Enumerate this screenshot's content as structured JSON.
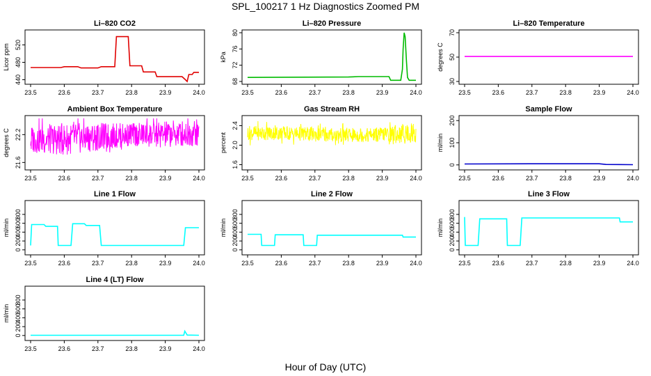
{
  "title": "SPL_100217  1 Hz Diagnostics Zoomed PM",
  "xlabel": "Hour of Day (UTC)",
  "chart_data": [
    {
      "type": "line",
      "title": "Li–820 CO2",
      "ylabel": "Licor ppm",
      "color": "#e00000",
      "xlim": [
        23.5,
        24.0
      ],
      "xticks": [
        "23.5",
        "23.6",
        "23.7",
        "23.8",
        "23.9",
        "24.0"
      ],
      "ylim": [
        436,
        548
      ],
      "yticks": [
        "440",
        "480",
        "520"
      ],
      "series": [
        {
          "x": [
            23.5,
            23.59,
            23.6,
            23.64,
            23.65,
            23.7,
            23.71,
            23.75,
            23.755,
            23.79,
            23.795,
            23.83,
            23.835,
            23.87,
            23.875,
            23.95,
            23.96,
            23.965,
            23.97,
            23.98,
            23.985,
            24.0
          ],
          "y": [
            468,
            468,
            470,
            470,
            467,
            467,
            470,
            470,
            539,
            539,
            472,
            472,
            458,
            458,
            447,
            447,
            440,
            436,
            452,
            452,
            457,
            457
          ]
        }
      ]
    },
    {
      "type": "line",
      "title": "Li–820 Pressure",
      "ylabel": "kPa",
      "color": "#00bb00",
      "xlim": [
        23.5,
        24.0
      ],
      "xticks": [
        "23.5",
        "23.6",
        "23.7",
        "23.8",
        "23.9",
        "24.0"
      ],
      "ylim": [
        68,
        80
      ],
      "yticks": [
        "68",
        "72",
        "76",
        "80"
      ],
      "series": [
        {
          "x": [
            23.5,
            23.8,
            23.83,
            23.92,
            23.925,
            23.955,
            23.96,
            23.962,
            23.965,
            23.968,
            23.972,
            23.975,
            23.98,
            24.0
          ],
          "y": [
            69,
            69.1,
            69.2,
            69.2,
            68.3,
            68.3,
            71,
            76,
            80,
            79,
            73,
            69,
            68.3,
            68.3
          ]
        }
      ]
    },
    {
      "type": "line",
      "title": "Li–820 Temperature",
      "ylabel": "degrees C",
      "color": "#ff00ff",
      "xlim": [
        23.5,
        24.0
      ],
      "xticks": [
        "23.5",
        "23.6",
        "23.7",
        "23.8",
        "23.9",
        "24.0"
      ],
      "ylim": [
        30,
        70
      ],
      "yticks": [
        "30",
        "50",
        "70"
      ],
      "series": [
        {
          "x": [
            23.5,
            24.0
          ],
          "y": [
            50.5,
            50.5
          ]
        }
      ]
    },
    {
      "type": "line",
      "title": "Ambient Box Temperature",
      "ylabel": "degrees C",
      "color": "#ff00ff",
      "xlim": [
        23.5,
        24.0
      ],
      "xticks": [
        "23.5",
        "23.6",
        "23.7",
        "23.8",
        "23.9",
        "24.0"
      ],
      "ylim": [
        21.5,
        22.55
      ],
      "yticks": [
        "21.6",
        "22.2"
      ],
      "series": [
        {
          "x": [
            23.5,
            23.6,
            23.7,
            23.8,
            23.9,
            24.0
          ],
          "y": [
            22.1,
            22.1,
            22.15,
            22.2,
            22.2,
            22.25
          ],
          "band": [
            0.3,
            0.35,
            0.3,
            0.25,
            0.3,
            0.3
          ]
        }
      ]
    },
    {
      "type": "line",
      "title": "Gas Stream RH",
      "ylabel": "percent",
      "color": "#ffff00",
      "xlim": [
        23.5,
        24.0
      ],
      "xticks": [
        "23.5",
        "23.6",
        "23.7",
        "23.8",
        "23.9",
        "24.0"
      ],
      "ylim": [
        1.55,
        2.55
      ],
      "yticks": [
        "1.6",
        "2.0",
        "2.4"
      ],
      "series": [
        {
          "x": [
            23.5,
            23.6,
            23.7,
            23.8,
            23.9,
            24.0
          ],
          "y": [
            2.25,
            2.25,
            2.22,
            2.2,
            2.22,
            2.25
          ],
          "band": [
            0.15,
            0.15,
            0.15,
            0.15,
            0.15,
            0.25
          ]
        }
      ]
    },
    {
      "type": "line",
      "title": "Sample Flow",
      "ylabel": "ml/min",
      "color": "#0000cc",
      "xlim": [
        23.5,
        24.0
      ],
      "xticks": [
        "23.5",
        "23.6",
        "23.7",
        "23.8",
        "23.9",
        "24.0"
      ],
      "ylim": [
        -10,
        210
      ],
      "yticks": [
        "0",
        "100",
        "200"
      ],
      "series": [
        {
          "x": [
            23.5,
            23.7,
            23.9,
            23.92,
            24.0
          ],
          "y": [
            4,
            5,
            5,
            2,
            1
          ]
        }
      ]
    },
    {
      "type": "line",
      "title": "Line 1 Flow",
      "ylabel": "ml/min",
      "color": "#00ffff",
      "xlim": [
        23.5,
        24.0
      ],
      "xticks": [
        "23.5",
        "23.6",
        "23.7",
        "23.8",
        "23.9",
        "24.0"
      ],
      "ylim": [
        -50,
        1050
      ],
      "yticks": [
        "0",
        "200",
        "400",
        "600",
        "800"
      ],
      "series": [
        {
          "x": [
            23.5,
            23.503,
            23.54,
            23.545,
            23.58,
            23.582,
            23.62,
            23.625,
            23.66,
            23.665,
            23.705,
            23.71,
            23.955,
            23.96,
            24.0
          ],
          "y": [
            100,
            570,
            570,
            530,
            530,
            100,
            100,
            590,
            590,
            550,
            550,
            100,
            100,
            500,
            500
          ]
        }
      ]
    },
    {
      "type": "line",
      "title": "Line 2 Flow",
      "ylabel": "ml/min",
      "color": "#00ffff",
      "xlim": [
        23.5,
        24.0
      ],
      "xticks": [
        "23.5",
        "23.6",
        "23.7",
        "23.8",
        "23.9",
        "24.0"
      ],
      "ylim": [
        -50,
        1050
      ],
      "yticks": [
        "0",
        "200",
        "400",
        "600",
        "800"
      ],
      "series": [
        {
          "x": [
            23.5,
            23.54,
            23.542,
            23.58,
            23.582,
            23.665,
            23.667,
            23.705,
            23.707,
            23.96,
            23.962,
            24.0
          ],
          "y": [
            350,
            350,
            100,
            100,
            340,
            340,
            100,
            100,
            330,
            330,
            290,
            290
          ]
        }
      ]
    },
    {
      "type": "line",
      "title": "Line 3 Flow",
      "ylabel": "ml/min",
      "color": "#00ffff",
      "xlim": [
        23.5,
        24.0
      ],
      "xticks": [
        "23.5",
        "23.6",
        "23.7",
        "23.8",
        "23.9",
        "24.0"
      ],
      "ylim": [
        -50,
        1050
      ],
      "yticks": [
        "0",
        "200",
        "400",
        "600",
        "800"
      ],
      "series": [
        {
          "x": [
            23.5,
            23.502,
            23.504,
            23.54,
            23.545,
            23.625,
            23.627,
            23.665,
            23.67,
            23.96,
            23.962,
            24.0
          ],
          "y": [
            740,
            100,
            100,
            100,
            700,
            700,
            100,
            100,
            720,
            720,
            630,
            630
          ]
        }
      ]
    },
    {
      "type": "line",
      "title": "Line 4 (LT) Flow",
      "ylabel": "ml/min",
      "color": "#00ffff",
      "xlim": [
        23.5,
        24.0
      ],
      "xticks": [
        "23.5",
        "23.6",
        "23.7",
        "23.8",
        "23.9",
        "24.0"
      ],
      "ylim": [
        -50,
        1050
      ],
      "yticks": [
        "0",
        "200",
        "400",
        "600",
        "800"
      ],
      "series": [
        {
          "x": [
            23.5,
            23.955,
            23.958,
            23.962,
            23.965,
            24.0
          ],
          "y": [
            5,
            5,
            100,
            50,
            10,
            5
          ]
        }
      ]
    }
  ]
}
